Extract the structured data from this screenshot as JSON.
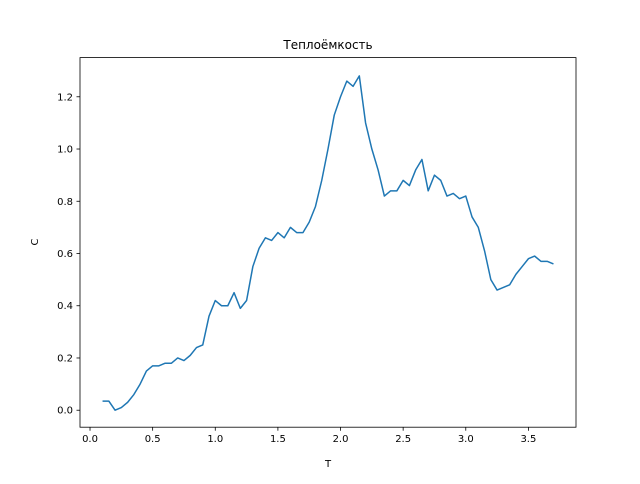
{
  "chart_data": {
    "type": "line",
    "title": "Теплоёмкость",
    "xlabel": "T",
    "ylabel": "C",
    "x": [
      0.1,
      0.15,
      0.2,
      0.25,
      0.3,
      0.35,
      0.4,
      0.45,
      0.5,
      0.55,
      0.6,
      0.65,
      0.7,
      0.75,
      0.8,
      0.85,
      0.9,
      0.95,
      1.0,
      1.05,
      1.1,
      1.15,
      1.2,
      1.25,
      1.3,
      1.35,
      1.4,
      1.45,
      1.5,
      1.55,
      1.6,
      1.65,
      1.7,
      1.75,
      1.8,
      1.85,
      1.9,
      1.95,
      2.0,
      2.05,
      2.1,
      2.15,
      2.2,
      2.25,
      2.3,
      2.35,
      2.4,
      2.45,
      2.5,
      2.55,
      2.6,
      2.65,
      2.7,
      2.75,
      2.8,
      2.85,
      2.9,
      2.95,
      3.0,
      3.05,
      3.1,
      3.15,
      3.2,
      3.25,
      3.3,
      3.35,
      3.4,
      3.45,
      3.5,
      3.55,
      3.6,
      3.65,
      3.7
    ],
    "series": [
      {
        "color": "#1f77b4",
        "values": [
          0.035,
          0.035,
          0.0,
          0.01,
          0.03,
          0.06,
          0.1,
          0.15,
          0.17,
          0.17,
          0.18,
          0.18,
          0.2,
          0.19,
          0.21,
          0.24,
          0.25,
          0.36,
          0.42,
          0.4,
          0.4,
          0.45,
          0.39,
          0.42,
          0.55,
          0.62,
          0.66,
          0.65,
          0.68,
          0.66,
          0.7,
          0.68,
          0.68,
          0.72,
          0.78,
          0.88,
          1.0,
          1.13,
          1.2,
          1.26,
          1.24,
          1.28,
          1.1,
          1.0,
          0.92,
          0.82,
          0.84,
          0.84,
          0.88,
          0.86,
          0.92,
          0.96,
          0.84,
          0.9,
          0.88,
          0.82,
          0.83,
          0.81,
          0.82,
          0.74,
          0.7,
          0.61,
          0.5,
          0.46,
          0.47,
          0.48,
          0.52,
          0.55,
          0.58,
          0.59,
          0.57,
          0.57,
          0.56
        ]
      }
    ],
    "xlim": [
      -0.08,
      3.88
    ],
    "ylim": [
      -0.065,
      1.35
    ],
    "xticks": [
      {
        "value": 0,
        "label": "0.0"
      },
      0.5,
      {
        "value": 1,
        "label": "1.0"
      },
      1.5,
      {
        "value": 2,
        "label": "2.0"
      },
      2.5,
      {
        "value": 3,
        "label": "3.0"
      },
      3.5
    ],
    "yticks": [
      {
        "value": 0,
        "label": "0.0"
      },
      0.2,
      0.4,
      0.6,
      0.8,
      {
        "value": 1,
        "label": "1.0"
      },
      1.2
    ]
  }
}
